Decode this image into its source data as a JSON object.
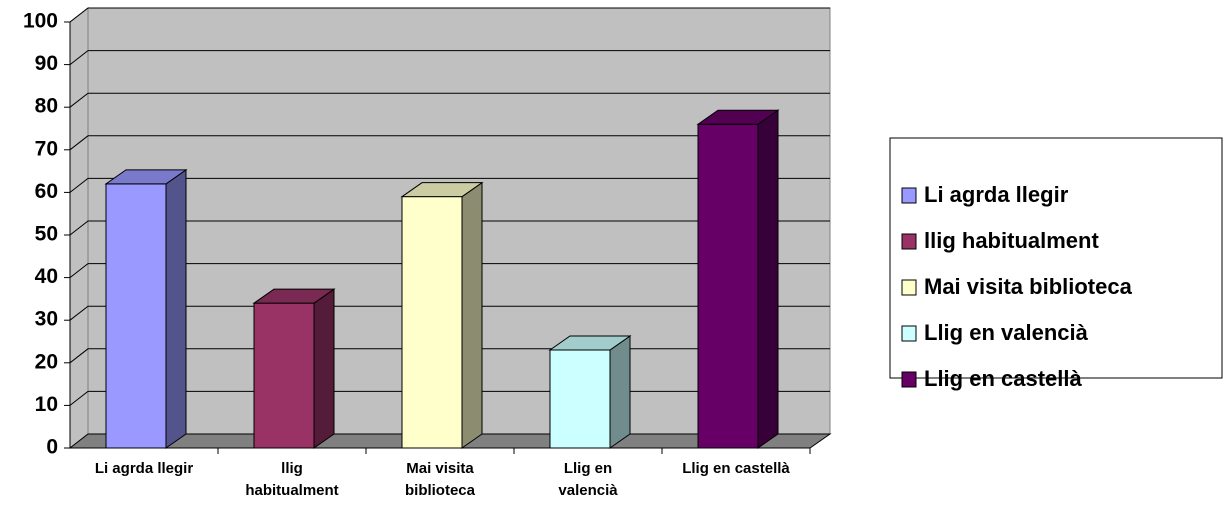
{
  "chart_data": {
    "type": "bar3d",
    "categories": [
      "Li agrda llegir",
      "llig habitualment",
      "Mai visita biblioteca",
      "Llig en valencià",
      "Llig en castellà"
    ],
    "values": [
      62,
      34,
      59,
      23,
      76
    ],
    "colors": [
      "#9999ff",
      "#993366",
      "#ffffcc",
      "#ccffff",
      "#660066"
    ],
    "ylim": [
      0,
      100
    ],
    "yticks": [
      0,
      10,
      20,
      30,
      40,
      50,
      60,
      70,
      80,
      90,
      100
    ],
    "grid": true,
    "legend": "right"
  }
}
